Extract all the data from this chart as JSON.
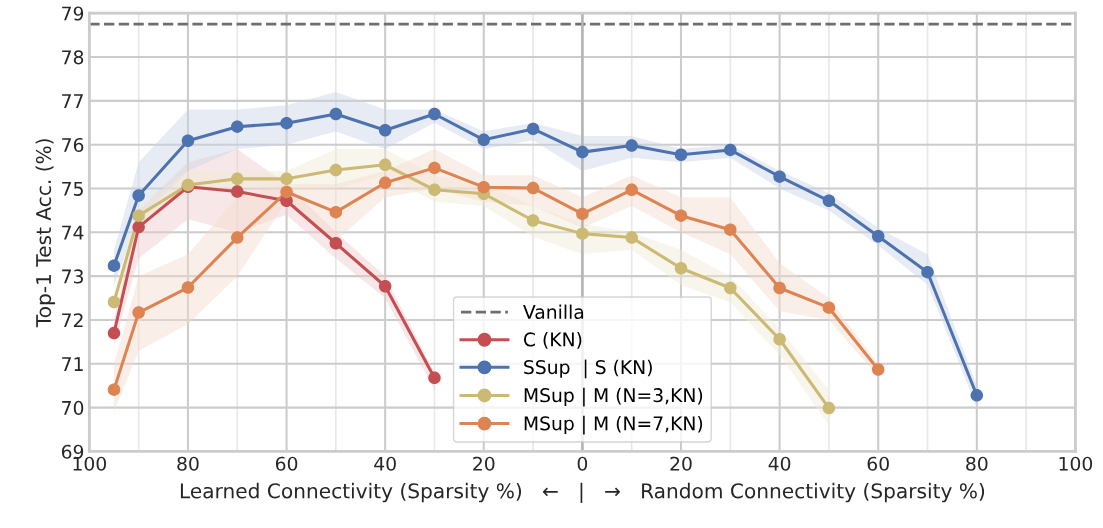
{
  "chart_data": {
    "type": "line",
    "xlabel": "Learned Connectivity (Sparsity %)   ←   |   →   Random Connectivity (Sparsity %)",
    "ylabel": "Top-1 Test Acc. (%)",
    "xlim": [
      -100,
      100
    ],
    "ylim": [
      69,
      79
    ],
    "xticks": [
      {
        "value": -100,
        "label": "100"
      },
      {
        "value": -90,
        "label": null
      },
      {
        "value": -80,
        "label": "80"
      },
      {
        "value": -70,
        "label": null
      },
      {
        "value": -60,
        "label": "60"
      },
      {
        "value": -50,
        "label": null
      },
      {
        "value": -40,
        "label": "40"
      },
      {
        "value": -30,
        "label": null
      },
      {
        "value": -20,
        "label": "20"
      },
      {
        "value": -10,
        "label": null
      },
      {
        "value": 0,
        "label": "0"
      },
      {
        "value": 10,
        "label": null
      },
      {
        "value": 20,
        "label": "20"
      },
      {
        "value": 30,
        "label": null
      },
      {
        "value": 40,
        "label": "40"
      },
      {
        "value": 50,
        "label": null
      },
      {
        "value": 60,
        "label": "60"
      },
      {
        "value": 70,
        "label": null
      },
      {
        "value": 80,
        "label": "80"
      },
      {
        "value": 90,
        "label": null
      },
      {
        "value": 100,
        "label": "100"
      }
    ],
    "yticks": [
      69,
      70,
      71,
      72,
      73,
      74,
      75,
      76,
      77,
      78,
      79
    ],
    "grid": true,
    "legend": "bottom",
    "marker": "circle",
    "line_style": "solid",
    "ref_lines": [
      {
        "axis": "y",
        "value": 78.75,
        "label": "Vanilla",
        "color": "#6e6e6e",
        "line_style": "dashed"
      },
      {
        "axis": "x",
        "value": 0,
        "color": "#b4b4b4",
        "line_style": "solid"
      }
    ],
    "series": [
      {
        "name": "C (KN)",
        "color": "#c44e52",
        "x": [
          -95,
          -90,
          -80,
          -70,
          -60,
          -50,
          -40,
          -30
        ],
        "values": [
          71.7,
          74.12,
          75.04,
          74.93,
          74.72,
          73.75,
          72.77,
          70.68
        ],
        "upper": [
          72.0,
          74.5,
          75.6,
          75.9,
          75.1,
          74.0,
          73.0,
          70.8
        ],
        "lower": [
          71.4,
          73.4,
          74.3,
          74.0,
          74.4,
          73.4,
          72.5,
          70.4
        ]
      },
      {
        "name": "SSup  | S (KN)",
        "color": "#4c72b0",
        "x": [
          -95,
          -90,
          -80,
          -70,
          -60,
          -50,
          -40,
          -30,
          -20,
          -10,
          0,
          10,
          20,
          30,
          40,
          50,
          60,
          70,
          80
        ],
        "values": [
          73.24,
          74.84,
          76.09,
          76.41,
          76.49,
          76.7,
          76.33,
          76.7,
          76.11,
          76.36,
          75.83,
          75.98,
          75.77,
          75.88,
          75.27,
          74.72,
          73.91,
          73.09,
          70.28
        ],
        "upper": [
          73.6,
          75.6,
          76.8,
          76.8,
          76.9,
          77.2,
          76.8,
          76.8,
          76.3,
          76.5,
          76.2,
          76.2,
          75.9,
          76.0,
          75.4,
          74.9,
          74.1,
          73.5,
          70.5
        ],
        "lower": [
          72.8,
          74.3,
          75.4,
          75.9,
          76.0,
          76.3,
          75.9,
          76.5,
          75.9,
          76.1,
          75.4,
          75.7,
          75.6,
          75.7,
          75.0,
          74.5,
          73.7,
          72.8,
          70.0
        ]
      },
      {
        "name": "MSup | M (N=3,KN)",
        "color": "#ccb974",
        "x": [
          -95,
          -90,
          -80,
          -70,
          -60,
          -50,
          -40,
          -30,
          -20,
          -10,
          0,
          10,
          20,
          30,
          40,
          50
        ],
        "values": [
          72.41,
          74.38,
          75.08,
          75.22,
          75.22,
          75.42,
          75.54,
          74.97,
          74.88,
          74.27,
          73.97,
          73.88,
          73.18,
          72.73,
          71.56,
          69.99
        ],
        "upper": [
          72.6,
          74.6,
          75.4,
          75.4,
          75.4,
          75.9,
          75.9,
          75.3,
          75.1,
          74.6,
          74.2,
          74.0,
          73.6,
          73.0,
          71.8,
          70.4
        ],
        "lower": [
          72.2,
          74.1,
          74.9,
          75.0,
          75.0,
          75.0,
          75.3,
          74.7,
          74.6,
          73.9,
          73.5,
          73.6,
          72.8,
          72.4,
          71.2,
          69.6
        ]
      },
      {
        "name": "MSup | M (N=7,KN)",
        "color": "#dd8452",
        "x": [
          -95,
          -90,
          -80,
          -70,
          -60,
          -50,
          -40,
          -30,
          -20,
          -10,
          0,
          10,
          20,
          30,
          40,
          50,
          60
        ],
        "values": [
          70.41,
          72.17,
          72.74,
          73.88,
          74.92,
          74.46,
          75.13,
          75.47,
          75.03,
          75.01,
          74.42,
          74.97,
          74.38,
          74.06,
          72.73,
          72.28,
          70.87
        ],
        "upper": [
          71.0,
          73.0,
          73.5,
          74.8,
          75.1,
          75.1,
          75.4,
          75.9,
          75.3,
          75.3,
          74.8,
          75.3,
          74.8,
          74.8,
          73.3,
          72.5,
          71.0
        ],
        "lower": [
          69.9,
          71.3,
          71.9,
          73.0,
          74.7,
          73.8,
          74.8,
          75.0,
          74.7,
          74.6,
          74.1,
          74.6,
          74.0,
          73.5,
          72.2,
          72.0,
          70.7
        ]
      }
    ]
  }
}
